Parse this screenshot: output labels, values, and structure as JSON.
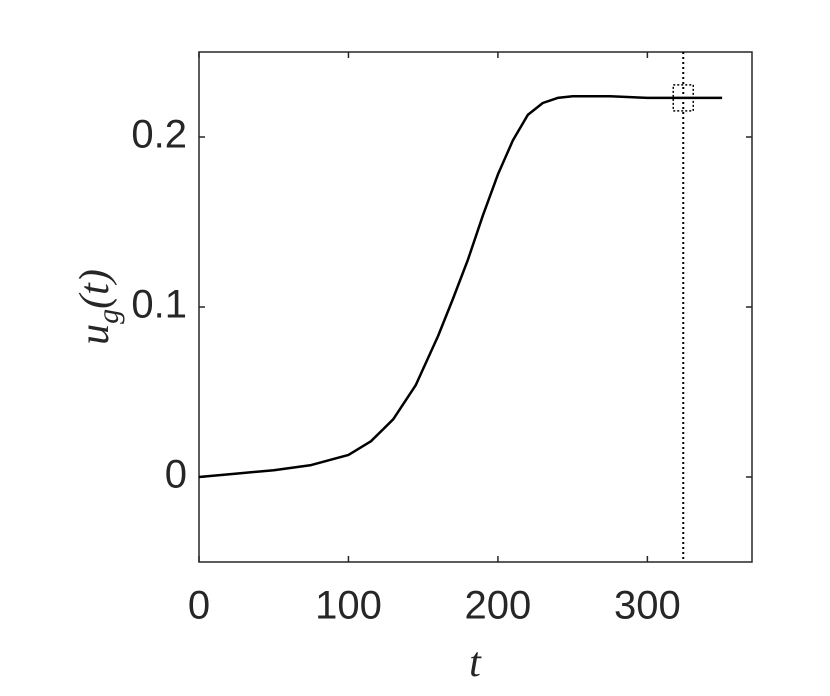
{
  "chart_data": {
    "type": "line",
    "xlabel": "t",
    "ylabel": {
      "base": "u",
      "sub": "g",
      "rest": "(t)"
    },
    "x": [
      0,
      25,
      50,
      75,
      100,
      115,
      130,
      145,
      160,
      170,
      180,
      190,
      200,
      210,
      220,
      230,
      240,
      250,
      275,
      300,
      325,
      350
    ],
    "series": [
      {
        "color": "#000000",
        "values": [
          0,
          0.002,
          0.004,
          0.007,
          0.013,
          0.021,
          0.034,
          0.054,
          0.083,
          0.105,
          0.128,
          0.154,
          0.178,
          0.198,
          0.213,
          0.22,
          0.223,
          0.224,
          0.224,
          0.223,
          0.223,
          0.223
        ]
      }
    ],
    "xlim": [
      0,
      370
    ],
    "ylim": [
      -0.05,
      0.25
    ],
    "xticks": [
      0,
      100,
      200,
      300
    ],
    "yticks": [
      0,
      0.1,
      0.2
    ],
    "vline": {
      "x": 324,
      "color": "#000000"
    },
    "marker": {
      "x": 324,
      "y": 0.223
    }
  }
}
